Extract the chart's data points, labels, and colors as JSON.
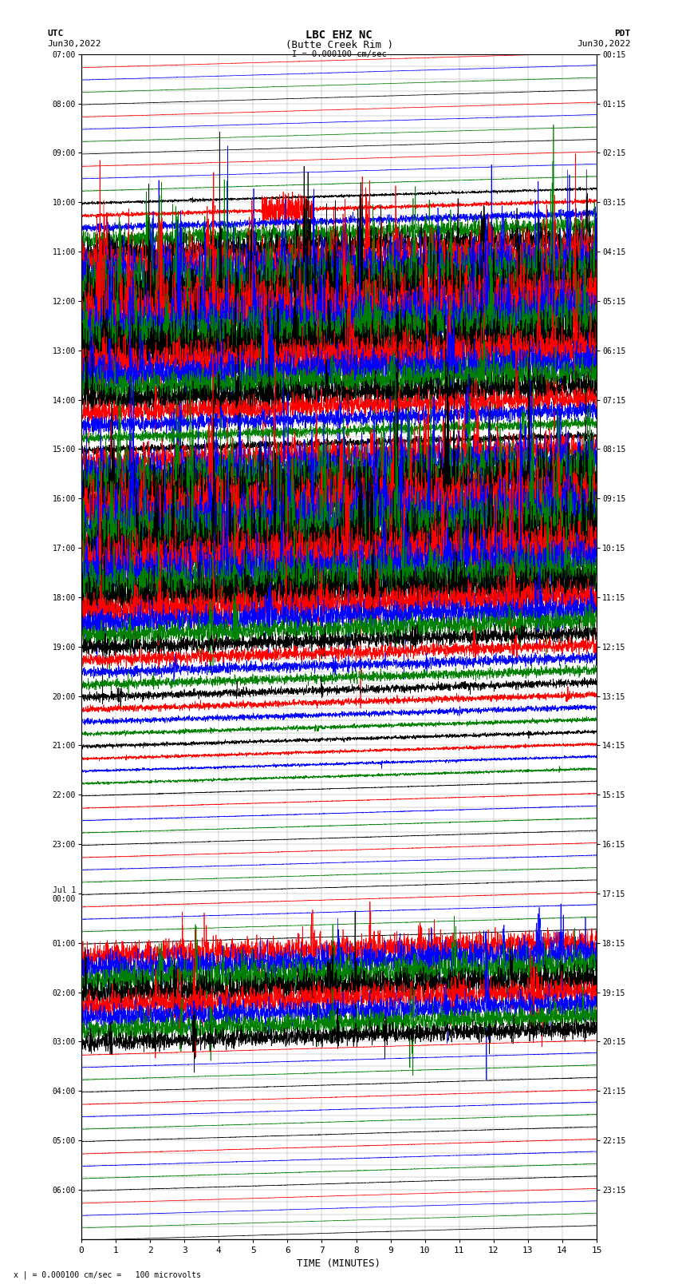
{
  "title_line1": "LBC EHZ NC",
  "title_line2": "(Butte Creek Rim )",
  "scale_label": "I = 0.000100 cm/sec",
  "utc_label": "UTC",
  "utc_date": "Jun30,2022",
  "pdt_label": "PDT",
  "pdt_date": "Jun30,2022",
  "bottom_label": "x | = 0.000100 cm/sec =   100 microvolts",
  "xlabel": "TIME (MINUTES)",
  "xticks": [
    0,
    1,
    2,
    3,
    4,
    5,
    6,
    7,
    8,
    9,
    10,
    11,
    12,
    13,
    14,
    15
  ],
  "xmin": 0,
  "xmax": 15,
  "background_color": "#ffffff",
  "colors": [
    "#ff0000",
    "#0000ff",
    "#008000",
    "#000000"
  ],
  "n_traces": 96,
  "utc_times_hourly": [
    "07:00",
    "08:00",
    "09:00",
    "10:00",
    "11:00",
    "12:00",
    "13:00",
    "14:00",
    "15:00",
    "16:00",
    "17:00",
    "18:00",
    "19:00",
    "20:00",
    "21:00",
    "22:00",
    "23:00",
    "Jul 1\n00:00",
    "01:00",
    "02:00",
    "03:00",
    "04:00",
    "05:00",
    "06:00"
  ],
  "pdt_times_hourly": [
    "00:15",
    "01:15",
    "02:15",
    "03:15",
    "04:15",
    "05:15",
    "06:15",
    "07:15",
    "08:15",
    "09:15",
    "10:15",
    "11:15",
    "12:15",
    "13:15",
    "14:15",
    "15:15",
    "16:15",
    "17:15",
    "18:15",
    "19:15",
    "20:15",
    "21:15",
    "22:15",
    "23:15"
  ],
  "drift_per_trace": 1.2,
  "activity_levels": [
    0.02,
    0.02,
    0.02,
    0.02,
    0.02,
    0.02,
    0.02,
    0.02,
    0.02,
    0.02,
    0.03,
    0.05,
    0.08,
    0.15,
    0.35,
    0.5,
    0.8,
    1.0,
    1.2,
    1.2,
    1.2,
    1.1,
    1.0,
    0.9,
    0.8,
    0.7,
    0.6,
    0.5,
    0.4,
    0.3,
    0.2,
    0.15,
    0.6,
    0.9,
    1.1,
    1.2,
    1.2,
    1.2,
    1.2,
    1.1,
    1.0,
    0.9,
    0.8,
    0.7,
    0.6,
    0.5,
    0.4,
    0.3,
    0.25,
    0.2,
    0.18,
    0.15,
    0.12,
    0.1,
    0.08,
    0.07,
    0.06,
    0.05,
    0.05,
    0.04,
    0.04,
    0.04,
    0.04,
    0.03,
    0.03,
    0.03,
    0.03,
    0.03,
    0.03,
    0.03,
    0.03,
    0.03,
    0.5,
    0.6,
    0.6,
    0.55,
    0.5,
    0.45,
    0.4,
    0.35,
    0.03,
    0.03,
    0.03,
    0.03,
    0.03,
    0.03,
    0.03,
    0.03,
    0.03,
    0.03,
    0.03,
    0.03,
    0.02,
    0.02,
    0.02,
    0.02
  ]
}
